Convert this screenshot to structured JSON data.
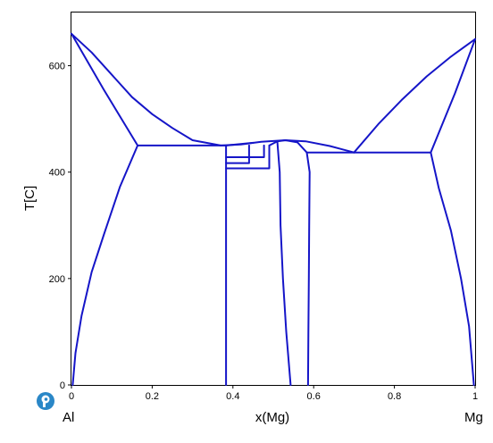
{
  "chart_data": {
    "type": "line",
    "xlabel": "x(Mg)",
    "ylabel": "T[C]",
    "xlim": [
      0,
      1
    ],
    "ylim": [
      0,
      700
    ],
    "xticks": [
      {
        "value": 0,
        "label": "0"
      },
      {
        "value": 0.2,
        "label": "0.2"
      },
      {
        "value": 0.4,
        "label": "0.4"
      },
      {
        "value": 0.6,
        "label": "0.6"
      },
      {
        "value": 0.8,
        "label": "0.8"
      },
      {
        "value": 1,
        "label": "1"
      }
    ],
    "yticks": [
      {
        "value": 0,
        "label": "0"
      },
      {
        "value": 200,
        "label": "200"
      },
      {
        "value": 400,
        "label": "400"
      },
      {
        "value": 600,
        "label": "600"
      }
    ],
    "left_end_label": "Al",
    "right_end_label": "Mg",
    "grid": false,
    "line_color": "#1515c8",
    "series": [
      {
        "id": "liquidus-al",
        "points": [
          [
            0,
            660
          ],
          [
            0.05,
            625
          ],
          [
            0.1,
            583
          ],
          [
            0.15,
            541
          ],
          [
            0.2,
            509
          ],
          [
            0.25,
            483
          ],
          [
            0.3,
            460
          ],
          [
            0.37,
            450
          ]
        ]
      },
      {
        "id": "solidus-al",
        "points": [
          [
            0,
            660
          ],
          [
            0.08,
            555
          ],
          [
            0.164,
            450
          ]
        ]
      },
      {
        "id": "solvus-al",
        "points": [
          [
            0.164,
            450
          ],
          [
            0.12,
            372
          ],
          [
            0.08,
            282
          ],
          [
            0.05,
            212
          ],
          [
            0.025,
            130
          ],
          [
            0.01,
            60
          ],
          [
            0.003,
            0
          ]
        ]
      },
      {
        "id": "eutectic-al",
        "points": [
          [
            0.164,
            450
          ],
          [
            0.383,
            450
          ]
        ]
      },
      {
        "id": "beta-left",
        "points": [
          [
            0.383,
            450
          ],
          [
            0.383,
            0
          ]
        ]
      },
      {
        "id": "liquidus-mid",
        "points": [
          [
            0.37,
            450
          ],
          [
            0.42,
            452
          ],
          [
            0.47,
            457
          ],
          [
            0.53,
            460
          ],
          [
            0.58,
            458
          ],
          [
            0.64,
            449
          ],
          [
            0.7,
            437
          ]
        ]
      },
      {
        "id": "beta-top",
        "points": [
          [
            0.383,
            450
          ],
          [
            0.45,
            455
          ]
        ]
      },
      {
        "id": "inner-box-1",
        "points": [
          [
            0.383,
            417
          ],
          [
            0.44,
            417
          ],
          [
            0.44,
            450
          ]
        ]
      },
      {
        "id": "inner-box-2",
        "points": [
          [
            0.383,
            407
          ],
          [
            0.49,
            407
          ],
          [
            0.49,
            450
          ]
        ]
      },
      {
        "id": "inner-box-3",
        "points": [
          [
            0.383,
            428
          ],
          [
            0.477,
            428
          ],
          [
            0.477,
            450
          ]
        ]
      },
      {
        "id": "gamma-peak",
        "points": [
          [
            0.49,
            450
          ],
          [
            0.51,
            458
          ],
          [
            0.53,
            460
          ],
          [
            0.56,
            456
          ],
          [
            0.583,
            437
          ]
        ]
      },
      {
        "id": "gamma-left",
        "points": [
          [
            0.51,
            458
          ],
          [
            0.516,
            400
          ],
          [
            0.518,
            300
          ],
          [
            0.524,
            200
          ],
          [
            0.532,
            100
          ],
          [
            0.543,
            0
          ]
        ]
      },
      {
        "id": "gamma-right",
        "points": [
          [
            0.583,
            437
          ],
          [
            0.59,
            400
          ],
          [
            0.589,
            300
          ],
          [
            0.588,
            200
          ],
          [
            0.587,
            100
          ],
          [
            0.586,
            0
          ]
        ]
      },
      {
        "id": "eutectic-mg",
        "points": [
          [
            0.583,
            437
          ],
          [
            0.89,
            437
          ]
        ]
      },
      {
        "id": "liquidus-mg",
        "points": [
          [
            0.7,
            437
          ],
          [
            0.76,
            490
          ],
          [
            0.82,
            537
          ],
          [
            0.88,
            580
          ],
          [
            0.94,
            617
          ],
          [
            1,
            650
          ]
        ]
      },
      {
        "id": "solidus-mg",
        "points": [
          [
            0.89,
            437
          ],
          [
            0.95,
            548
          ],
          [
            1,
            650
          ]
        ]
      },
      {
        "id": "solvus-mg",
        "points": [
          [
            0.89,
            437
          ],
          [
            0.91,
            370
          ],
          [
            0.94,
            290
          ],
          [
            0.965,
            200
          ],
          [
            0.985,
            110
          ],
          [
            0.997,
            0
          ]
        ]
      }
    ]
  }
}
